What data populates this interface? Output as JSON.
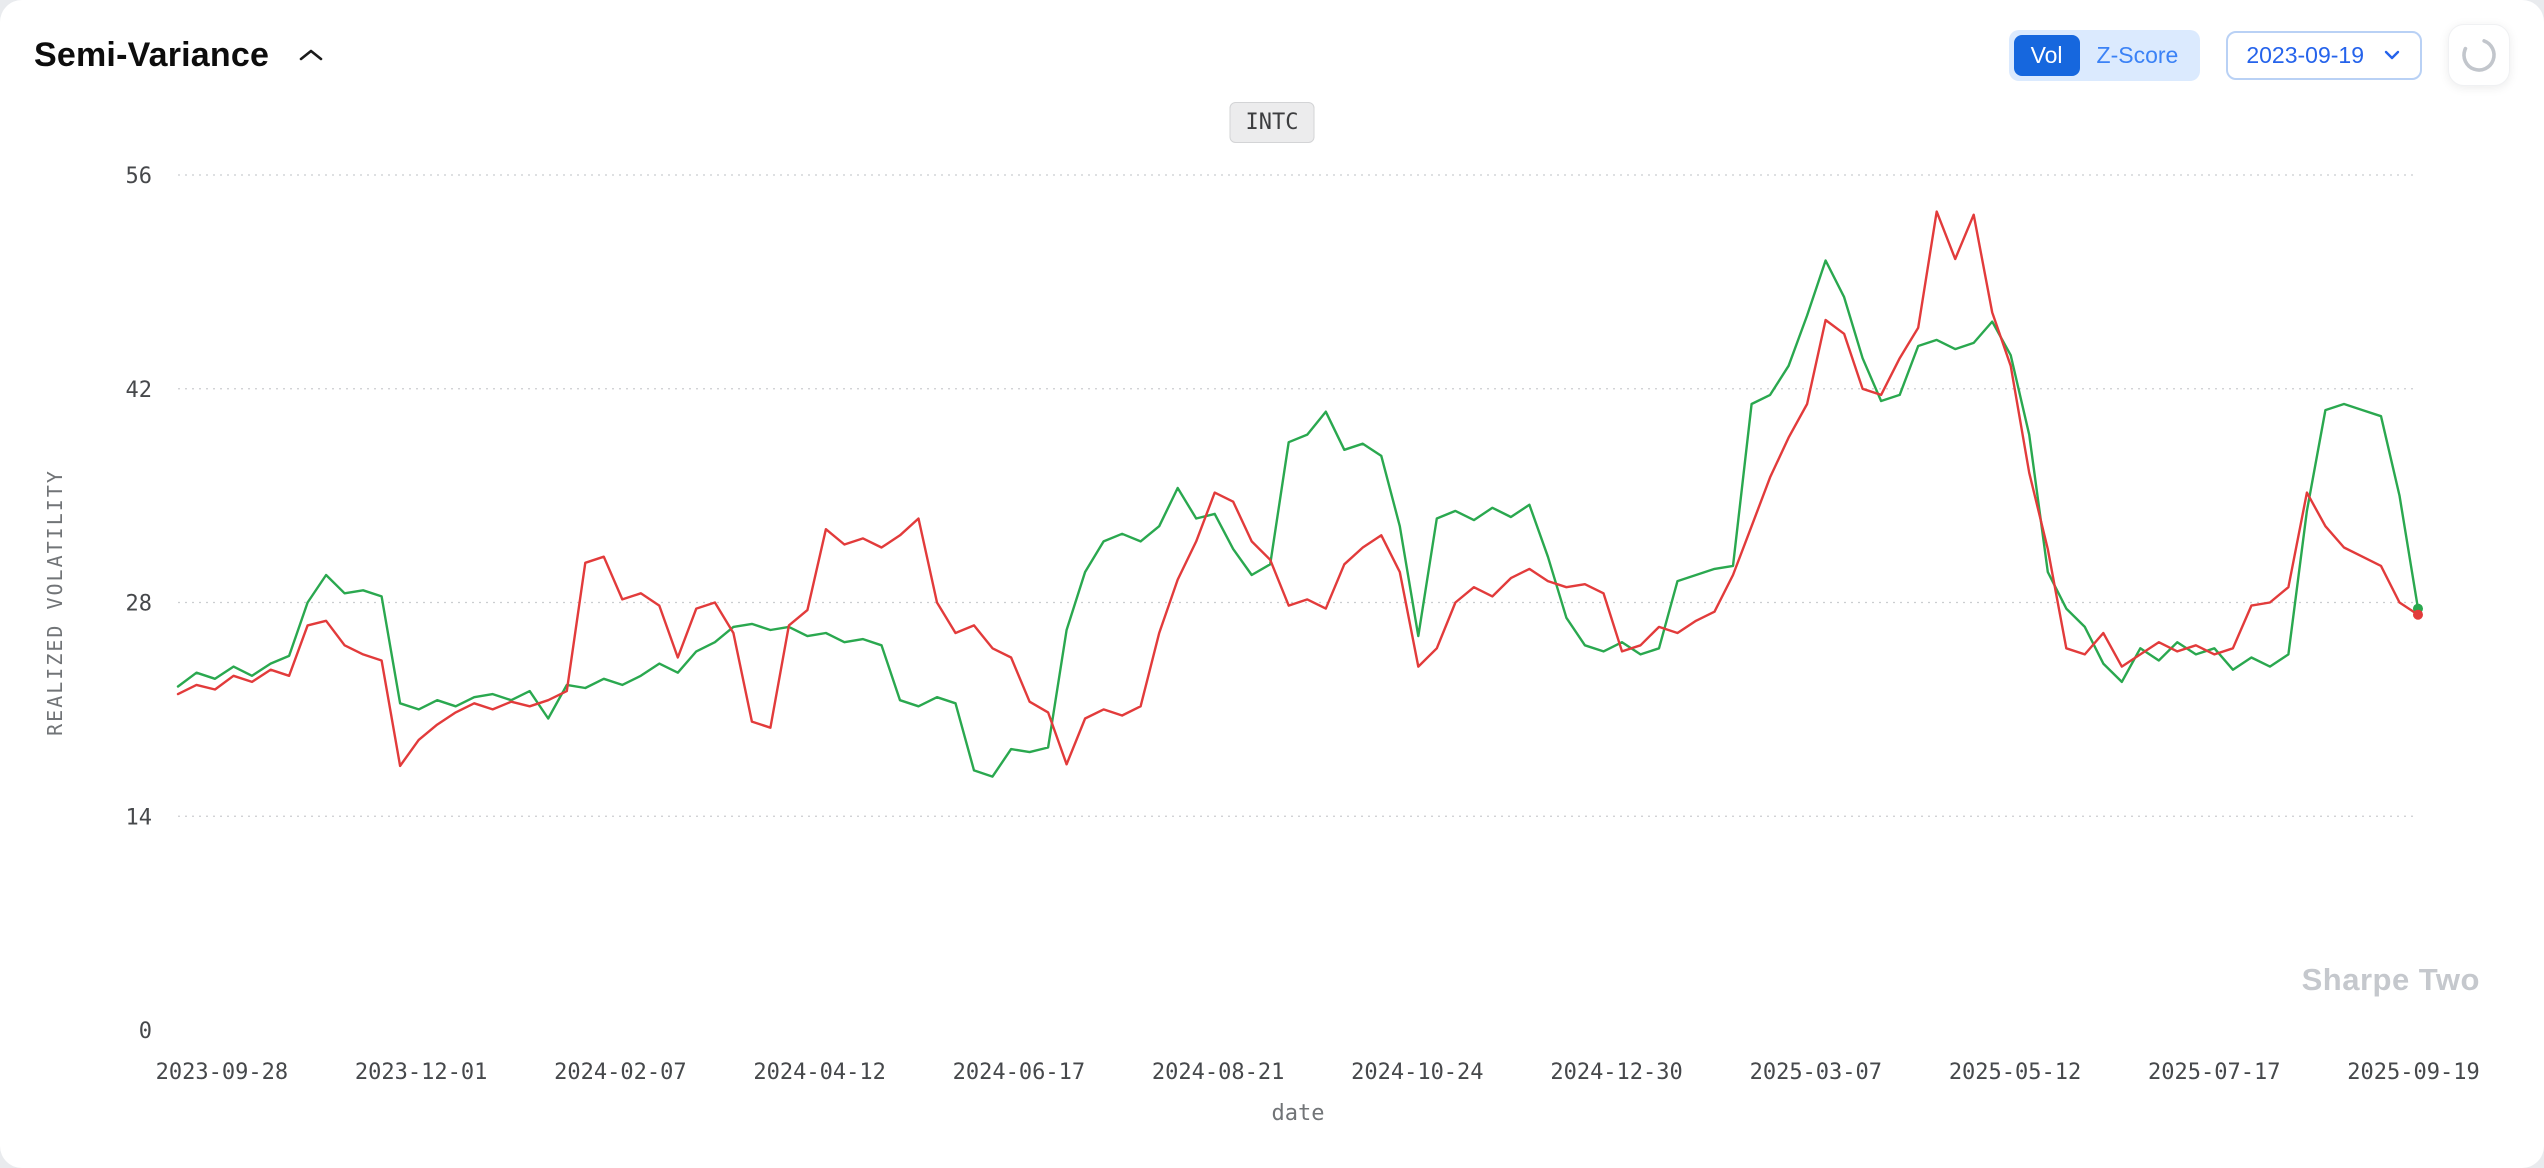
{
  "header": {
    "title": "Semi-Variance",
    "toggle": {
      "vol_label": "Vol",
      "zscore_label": "Z-Score",
      "active": "Vol"
    },
    "date_select": {
      "value": "2023-09-19"
    },
    "colors": {
      "accent_blue": "#1667de",
      "toggle_bg": "#dbeafe",
      "select_border": "#b9d1f5"
    }
  },
  "chart_data": {
    "type": "line",
    "title": "INTC",
    "xlabel": "date",
    "ylabel": "REALIZED VOLATILITY",
    "ylim": [
      0,
      56
    ],
    "y_ticks": [
      0,
      14,
      28,
      42,
      56
    ],
    "grid": "dotted-horizontal",
    "legend_position": "none",
    "watermark": "Sharpe Two",
    "x_ticks": [
      "2023-09-28",
      "2023-12-01",
      "2024-02-07",
      "2024-04-12",
      "2024-06-17",
      "2024-08-21",
      "2024-10-24",
      "2024-12-30",
      "2025-03-07",
      "2025-05-12",
      "2025-07-17",
      "2025-09-19"
    ],
    "series": [
      {
        "name": "green",
        "color": "#2aa84f",
        "values": [
          22.5,
          23.4,
          23.0,
          23.8,
          23.2,
          24.0,
          24.5,
          28.0,
          29.8,
          28.6,
          28.8,
          28.4,
          21.4,
          21.0,
          21.6,
          21.2,
          21.8,
          22.0,
          21.6,
          22.2,
          20.4,
          22.6,
          22.4,
          23.0,
          22.6,
          23.2,
          24.0,
          23.4,
          24.8,
          25.4,
          26.4,
          26.6,
          26.2,
          26.4,
          25.8,
          26.0,
          25.4,
          25.6,
          25.2,
          21.6,
          21.2,
          21.8,
          21.4,
          17.0,
          16.6,
          18.4,
          18.2,
          18.5,
          26.2,
          30.0,
          32.0,
          32.5,
          32.0,
          33.0,
          35.5,
          33.5,
          33.8,
          31.5,
          29.8,
          30.5,
          38.5,
          39.0,
          40.5,
          38.0,
          38.4,
          37.6,
          33.0,
          25.8,
          33.5,
          34.0,
          33.4,
          34.2,
          33.6,
          34.4,
          31.0,
          27.0,
          25.2,
          24.8,
          25.4,
          24.6,
          25.0,
          29.4,
          29.8,
          30.2,
          30.4,
          41.0,
          41.6,
          43.5,
          46.8,
          50.4,
          48.0,
          44.0,
          41.2,
          41.6,
          44.8,
          45.2,
          44.6,
          45.0,
          46.4,
          44.2,
          39.0,
          30.0,
          27.6,
          26.4,
          24.0,
          22.8,
          25.0,
          24.2,
          25.4,
          24.6,
          25.0,
          23.6,
          24.4,
          23.8,
          24.6,
          34.0,
          40.6,
          41.0,
          40.6,
          40.2,
          35.0,
          27.6
        ]
      },
      {
        "name": "red",
        "color": "#e23b3b",
        "values": [
          22.0,
          22.6,
          22.3,
          23.2,
          22.8,
          23.6,
          23.2,
          26.5,
          26.8,
          25.2,
          24.6,
          24.2,
          17.3,
          19.0,
          20.0,
          20.8,
          21.4,
          21.0,
          21.5,
          21.2,
          21.6,
          22.2,
          30.6,
          31.0,
          28.2,
          28.6,
          27.8,
          24.4,
          27.6,
          28.0,
          26.0,
          20.2,
          19.8,
          26.5,
          27.5,
          32.8,
          31.8,
          32.2,
          31.6,
          32.4,
          33.5,
          28.0,
          26.0,
          26.5,
          25.0,
          24.4,
          21.5,
          20.8,
          17.4,
          20.4,
          21.0,
          20.6,
          21.2,
          26.0,
          29.5,
          32.0,
          35.2,
          34.6,
          32.0,
          30.8,
          27.8,
          28.2,
          27.6,
          30.5,
          31.6,
          32.4,
          30.0,
          23.8,
          25.0,
          28.0,
          29.0,
          28.4,
          29.6,
          30.2,
          29.4,
          29.0,
          29.2,
          28.6,
          24.8,
          25.2,
          26.4,
          26.0,
          26.8,
          27.4,
          29.8,
          33.0,
          36.2,
          38.8,
          41.0,
          46.5,
          45.6,
          42.0,
          41.6,
          44.0,
          46.0,
          53.6,
          50.5,
          53.4,
          47.0,
          43.5,
          36.5,
          31.5,
          25.0,
          24.6,
          26.0,
          23.8,
          24.6,
          25.4,
          24.8,
          25.2,
          24.6,
          25.0,
          27.8,
          28.0,
          29.0,
          35.2,
          33.0,
          31.6,
          31.0,
          30.4,
          28.0,
          27.2
        ]
      }
    ]
  }
}
